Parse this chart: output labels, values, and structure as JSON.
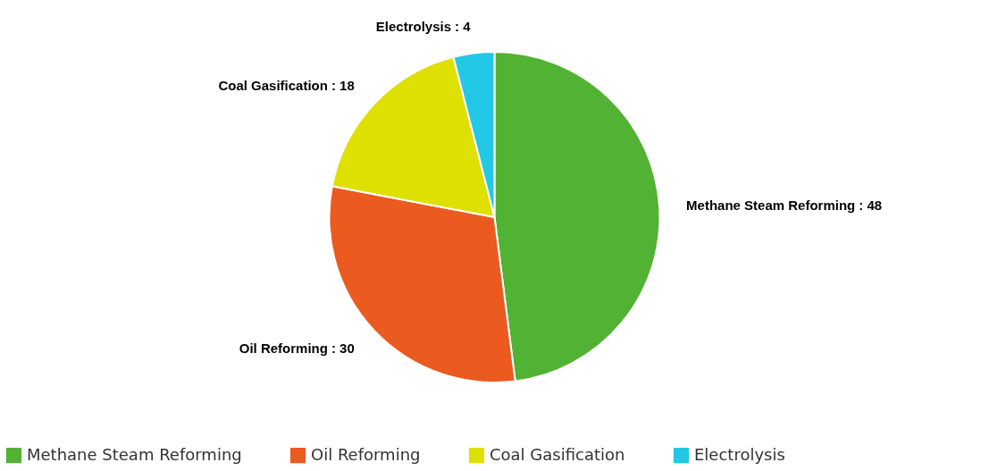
{
  "chart_data": {
    "type": "pie",
    "categories": [
      "Methane Steam Reforming",
      "Oil Reforming",
      "Coal Gasification",
      "Electrolysis"
    ],
    "values": [
      48,
      30,
      18,
      4
    ],
    "colors": [
      "#52b233",
      "#eb5a1e",
      "#dde000",
      "#22c8e6"
    ],
    "value_labels": [
      ": 48",
      ": 30",
      ": 18",
      ": 4"
    ],
    "legend": "bottom"
  }
}
